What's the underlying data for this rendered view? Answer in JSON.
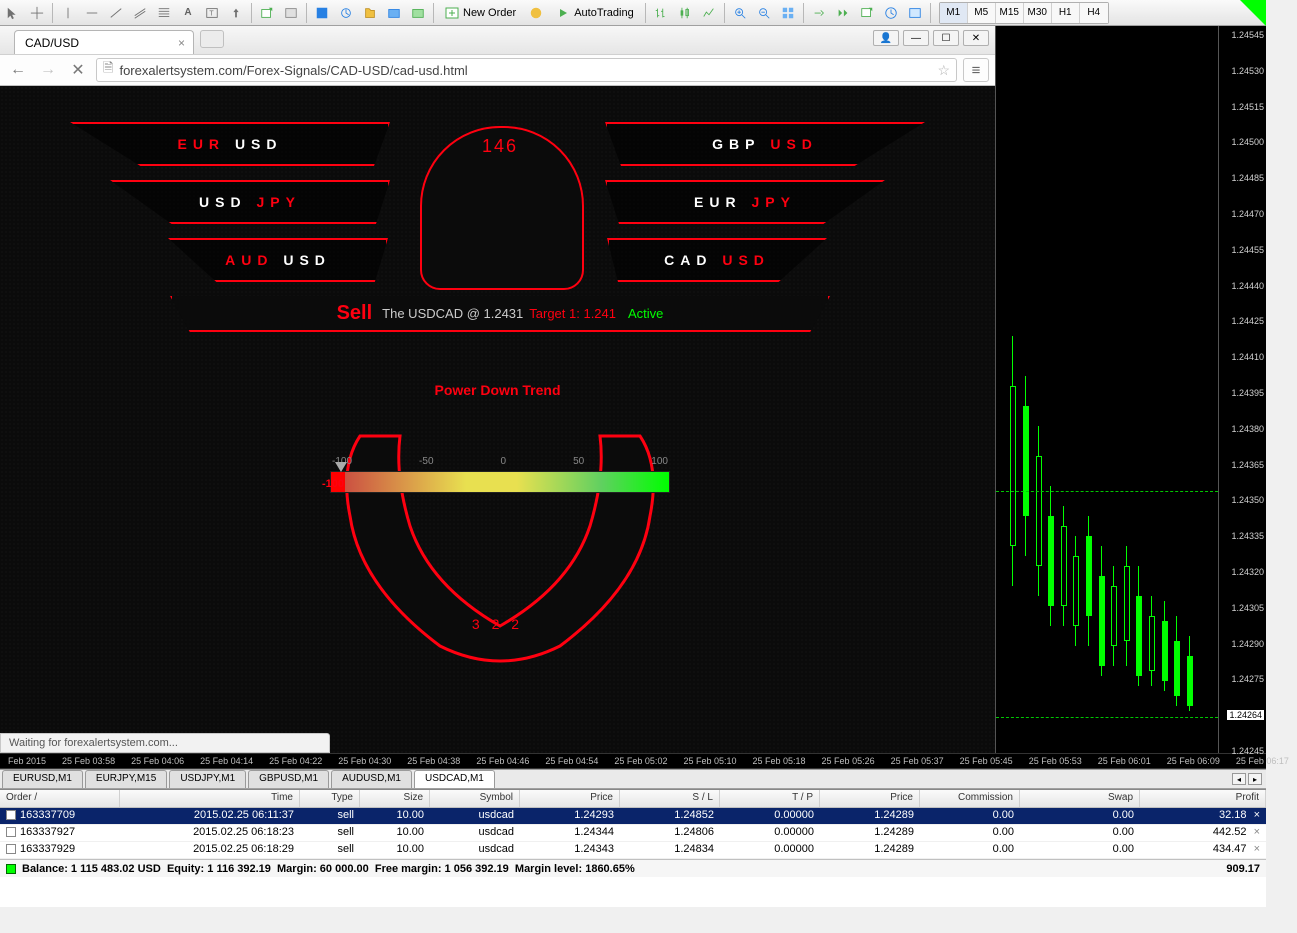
{
  "toolbar": {
    "new_order": "New Order",
    "autotrading": "AutoTrading",
    "timeframes": [
      "M1",
      "M5",
      "M15",
      "M30",
      "H1",
      "H4"
    ],
    "timeframe_selected": "M1"
  },
  "browser": {
    "tab_title": "CAD/USD",
    "url": "forexalertsystem.com/Forex-Signals/CAD-USD/cad-usd.html",
    "status": "Waiting for forexalertsystem.com..."
  },
  "eagle": {
    "head_number": "146",
    "pairs_left": [
      [
        "EUR",
        "USD"
      ],
      [
        "USD",
        "JPY"
      ],
      [
        "AUD",
        "USD"
      ]
    ],
    "pairs_right": [
      [
        "GBP",
        "USD"
      ],
      [
        "EUR",
        "JPY"
      ],
      [
        "CAD",
        "USD"
      ]
    ],
    "signal_action": "Sell",
    "signal_what": "The USDCAD @ 1.2431",
    "signal_target": "Target 1: 1.241",
    "signal_state": "Active",
    "trend_label": "Power Down Trend",
    "gauge_ticks": [
      "-100",
      "-50",
      "0",
      "50",
      "100"
    ],
    "gauge_value": "-100",
    "tail_number": "3 2 2"
  },
  "price_axis": {
    "labels": [
      "1.24545",
      "1.24530",
      "1.24515",
      "1.24500",
      "1.24485",
      "1.24470",
      "1.24455",
      "1.24440",
      "1.24425",
      "1.24410",
      "1.24395",
      "1.24380",
      "1.24365",
      "1.24350",
      "1.24335",
      "1.24320",
      "1.24305",
      "1.24290",
      "1.24275",
      "1.24264",
      "1.24245"
    ],
    "current_index": 19,
    "hlines": [
      0.64,
      0.95
    ],
    "candles": [
      {
        "x": 0.04,
        "wt": -30,
        "wb": 220,
        "bt": 20,
        "bb": 180,
        "dir": "up"
      },
      {
        "x": 0.1,
        "wt": 10,
        "wb": 190,
        "bt": 40,
        "bb": 150,
        "dir": "dn"
      },
      {
        "x": 0.16,
        "wt": 60,
        "wb": 230,
        "bt": 90,
        "bb": 200,
        "dir": "up"
      },
      {
        "x": 0.22,
        "wt": 120,
        "wb": 260,
        "bt": 150,
        "bb": 240,
        "dir": "dn"
      },
      {
        "x": 0.28,
        "wt": 140,
        "wb": 260,
        "bt": 160,
        "bb": 240,
        "dir": "up"
      },
      {
        "x": 0.34,
        "wt": 170,
        "wb": 280,
        "bt": 190,
        "bb": 260,
        "dir": "up"
      },
      {
        "x": 0.4,
        "wt": 150,
        "wb": 280,
        "bt": 170,
        "bb": 250,
        "dir": "dn"
      },
      {
        "x": 0.46,
        "wt": 180,
        "wb": 310,
        "bt": 210,
        "bb": 300,
        "dir": "dn"
      },
      {
        "x": 0.52,
        "wt": 200,
        "wb": 300,
        "bt": 220,
        "bb": 280,
        "dir": "up"
      },
      {
        "x": 0.58,
        "wt": 180,
        "wb": 300,
        "bt": 200,
        "bb": 275,
        "dir": "up"
      },
      {
        "x": 0.64,
        "wt": 200,
        "wb": 320,
        "bt": 230,
        "bb": 310,
        "dir": "dn"
      },
      {
        "x": 0.7,
        "wt": 230,
        "wb": 320,
        "bt": 250,
        "bb": 305,
        "dir": "up"
      },
      {
        "x": 0.76,
        "wt": 235,
        "wb": 325,
        "bt": 255,
        "bb": 315,
        "dir": "dn"
      },
      {
        "x": 0.82,
        "wt": 250,
        "wb": 340,
        "bt": 275,
        "bb": 330,
        "dir": "dn"
      },
      {
        "x": 0.88,
        "wt": 270,
        "wb": 345,
        "bt": 290,
        "bb": 340,
        "dir": "dn"
      }
    ]
  },
  "time_axis": [
    "Feb 2015",
    "25 Feb 03:58",
    "25 Feb 04:06",
    "25 Feb 04:14",
    "25 Feb 04:22",
    "25 Feb 04:30",
    "25 Feb 04:38",
    "25 Feb 04:46",
    "25 Feb 04:54",
    "25 Feb 05:02",
    "25 Feb 05:10",
    "25 Feb 05:18",
    "25 Feb 05:26",
    "25 Feb 05:37",
    "25 Feb 05:45",
    "25 Feb 05:53",
    "25 Feb 06:01",
    "25 Feb 06:09",
    "25 Feb 06:17"
  ],
  "chart_tabs": {
    "tabs": [
      "EURUSD,M1",
      "EURJPY,M15",
      "USDJPY,M1",
      "GBPUSD,M1",
      "AUDUSD,M1",
      "USDCAD,M1"
    ],
    "selected": 5
  },
  "orders": {
    "columns": [
      "Order",
      "Time",
      "Type",
      "Size",
      "Symbol",
      "Price",
      "S / L",
      "T / P",
      "Price",
      "Commission",
      "Swap",
      "Profit"
    ],
    "rows": [
      {
        "order": "163337709",
        "time": "2015.02.25 06:11:37",
        "type": "sell",
        "size": "10.00",
        "symbol": "usdcad",
        "price1": "1.24293",
        "sl": "1.24852",
        "tp": "0.00000",
        "price2": "1.24289",
        "comm": "0.00",
        "swap": "0.00",
        "profit": "32.18",
        "selected": true
      },
      {
        "order": "163337927",
        "time": "2015.02.25 06:18:23",
        "type": "sell",
        "size": "10.00",
        "symbol": "usdcad",
        "price1": "1.24344",
        "sl": "1.24806",
        "tp": "0.00000",
        "price2": "1.24289",
        "comm": "0.00",
        "swap": "0.00",
        "profit": "442.52",
        "selected": false
      },
      {
        "order": "163337929",
        "time": "2015.02.25 06:18:29",
        "type": "sell",
        "size": "10.00",
        "symbol": "usdcad",
        "price1": "1.24343",
        "sl": "1.24834",
        "tp": "0.00000",
        "price2": "1.24289",
        "comm": "0.00",
        "swap": "0.00",
        "profit": "434.47",
        "selected": false
      }
    ],
    "summary": {
      "balance": "Balance: 1 115 483.02 USD",
      "equity": "Equity: 1 116 392.19",
      "margin": "Margin: 60 000.00",
      "free_margin": "Free margin: 1 056 392.19",
      "margin_level": "Margin level: 1860.65%",
      "total_profit": "909.17"
    }
  }
}
